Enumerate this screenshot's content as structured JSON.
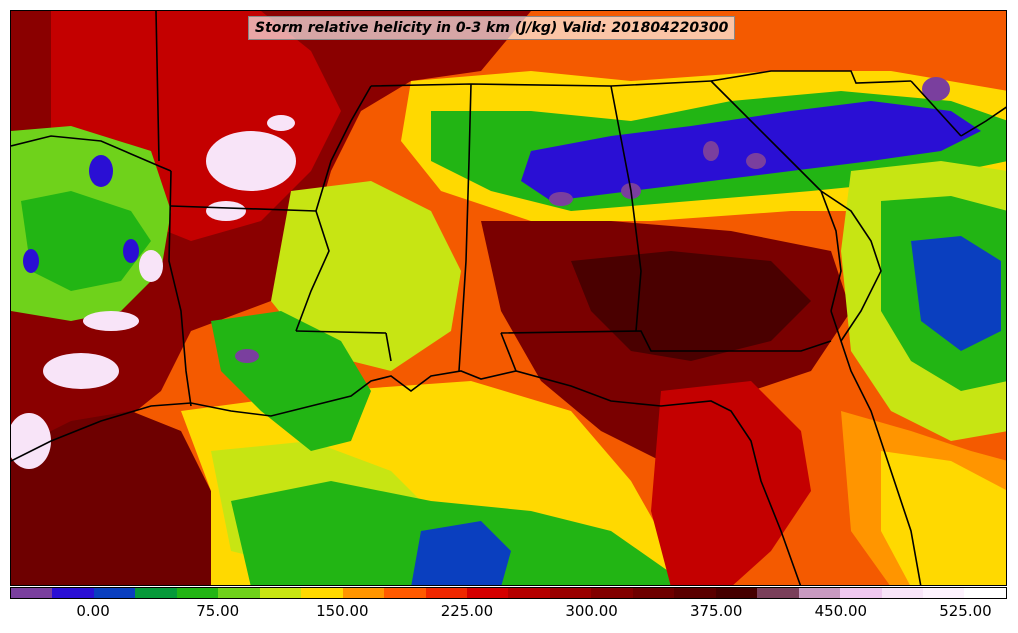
{
  "title": "Storm relative helicity in 0-3 km (J/kg) Valid: 201804220300",
  "colorbar": {
    "colors": [
      "#7a3f9e",
      "#2a0fd4",
      "#0a3fbf",
      "#069a3a",
      "#22b514",
      "#6fd21b",
      "#c7e513",
      "#ffd900",
      "#ff9500",
      "#ff5a00",
      "#f02800",
      "#d40000",
      "#b40000",
      "#9a0000",
      "#820000",
      "#6e0000",
      "#5a0000",
      "#450000",
      "#7a3f5a",
      "#c89ac0",
      "#f0c8f0",
      "#f8e4f8",
      "#fdf2fd",
      "#ffffff"
    ],
    "ticks": [
      "0.00",
      "75.00",
      "150.00",
      "225.00",
      "300.00",
      "375.00",
      "450.00",
      "525.00"
    ]
  },
  "palette": {
    "background": "#f45a00",
    "yellow": "#ffd900",
    "light_green": "#c7e513",
    "green": "#22b514",
    "blue": "#0a3fbf",
    "purple": "#7a3f9e",
    "dark_red": "#7a0000",
    "red": "#d40000",
    "white": "#f8e4f8",
    "orange": "#ff9500",
    "border": "#000000"
  }
}
